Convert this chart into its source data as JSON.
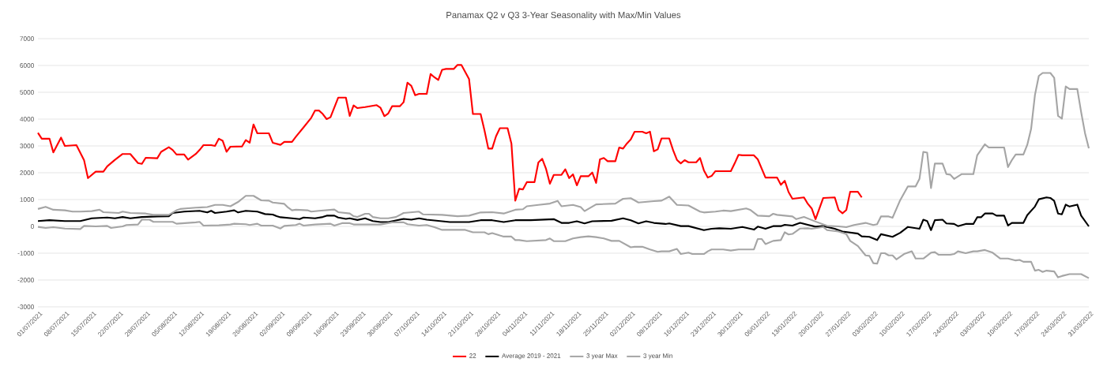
{
  "chart_data": {
    "type": "line",
    "title": "Panamax Q2 v Q3 3-Year Seasonality with Max/Min Values",
    "xlim": [
      "2021-07-01",
      "2022-03-31"
    ],
    "xticks": [
      {
        "value": "2021-07-01",
        "label": "01/07/2021"
      },
      {
        "value": "2021-07-08",
        "label": "08/07/2021"
      },
      {
        "value": "2021-07-15",
        "label": "15/07/2021"
      },
      {
        "value": "2021-07-22",
        "label": "22/07/2021"
      },
      {
        "value": "2021-07-29",
        "label": "29/07/2021"
      },
      {
        "value": "2021-08-05",
        "label": "05/08/2021"
      },
      {
        "value": "2021-08-12",
        "label": "12/08/2021"
      },
      {
        "value": "2021-08-19",
        "label": "19/08/2021"
      },
      {
        "value": "2021-08-26",
        "label": "26/08/2021"
      },
      {
        "value": "2021-09-02",
        "label": "02/09/2021"
      },
      {
        "value": "2021-09-09",
        "label": "09/09/2021"
      },
      {
        "value": "2021-09-16",
        "label": "16/09/2021"
      },
      {
        "value": "2021-09-23",
        "label": "23/09/2021"
      },
      {
        "value": "2021-09-30",
        "label": "30/09/2021"
      },
      {
        "value": "2021-10-07",
        "label": "07/10/2021"
      },
      {
        "value": "2021-10-14",
        "label": "14/10/2021"
      },
      {
        "value": "2021-10-21",
        "label": "21/10/2021"
      },
      {
        "value": "2021-10-28",
        "label": "28/10/2021"
      },
      {
        "value": "2021-11-04",
        "label": "04/11/2021"
      },
      {
        "value": "2021-11-11",
        "label": "11/11/2021"
      },
      {
        "value": "2021-11-18",
        "label": "18/11/2021"
      },
      {
        "value": "2021-11-25",
        "label": "25/11/2021"
      },
      {
        "value": "2021-12-02",
        "label": "02/12/2021"
      },
      {
        "value": "2021-12-09",
        "label": "09/12/2021"
      },
      {
        "value": "2021-12-16",
        "label": "16/12/2021"
      },
      {
        "value": "2021-12-23",
        "label": "23/12/2021"
      },
      {
        "value": "2021-12-30",
        "label": "30/12/2021"
      },
      {
        "value": "2022-01-06",
        "label": "06/01/2022"
      },
      {
        "value": "2022-01-13",
        "label": "13/01/2022"
      },
      {
        "value": "2022-01-20",
        "label": "20/01/2022"
      },
      {
        "value": "2022-01-27",
        "label": "27/01/2022"
      },
      {
        "value": "2022-02-03",
        "label": "03/02/2022"
      },
      {
        "value": "2022-02-10",
        "label": "10/02/2022"
      },
      {
        "value": "2022-02-17",
        "label": "17/02/2022"
      },
      {
        "value": "2022-02-24",
        "label": "24/02/2022"
      },
      {
        "value": "2022-03-03",
        "label": "03/03/2022"
      },
      {
        "value": "2022-03-10",
        "label": "10/03/2022"
      },
      {
        "value": "2022-03-17",
        "label": "17/03/2022"
      },
      {
        "value": "2022-03-24",
        "label": "24/03/2022"
      },
      {
        "value": "2022-03-31",
        "label": "31/03/2022"
      }
    ],
    "ylim": [
      -3000,
      7000
    ],
    "yticks": [
      -3000,
      -2000,
      -1000,
      0,
      1000,
      2000,
      3000,
      4000,
      5000,
      6000,
      7000
    ],
    "grid": "y",
    "legend": "bottom",
    "marker": "none",
    "line_style": "solid",
    "series": [
      {
        "name": "22",
        "color": "#ff0000",
        "x": [
          "2021-07-01",
          "2021-07-02",
          "2021-07-04",
          "2021-07-05",
          "2021-07-07",
          "2021-07-08",
          "2021-07-11",
          "2021-07-13",
          "2021-07-14",
          "2021-07-16",
          "2021-07-18",
          "2021-07-19",
          "2021-07-21",
          "2021-07-23",
          "2021-07-25",
          "2021-07-27",
          "2021-07-28",
          "2021-07-29",
          "2021-08-01",
          "2021-08-02",
          "2021-08-04",
          "2021-08-05",
          "2021-08-06",
          "2021-08-08",
          "2021-08-09",
          "2021-08-11",
          "2021-08-12",
          "2021-08-13",
          "2021-08-15",
          "2021-08-16",
          "2021-08-17",
          "2021-08-18",
          "2021-08-19",
          "2021-08-20",
          "2021-08-23",
          "2021-08-24",
          "2021-08-25",
          "2021-08-26",
          "2021-08-27",
          "2021-08-30",
          "2021-08-31",
          "2021-09-02",
          "2021-09-03",
          "2021-09-05",
          "2021-09-06",
          "2021-09-08",
          "2021-09-10",
          "2021-09-11",
          "2021-09-12",
          "2021-09-13",
          "2021-09-14",
          "2021-09-15",
          "2021-09-17",
          "2021-09-19",
          "2021-09-20",
          "2021-09-21",
          "2021-09-22",
          "2021-09-24",
          "2021-09-27",
          "2021-09-28",
          "2021-09-29",
          "2021-09-30",
          "2021-10-01",
          "2021-10-03",
          "2021-10-04",
          "2021-10-05",
          "2021-10-06",
          "2021-10-07",
          "2021-10-08",
          "2021-10-10",
          "2021-10-11",
          "2021-10-12",
          "2021-10-13",
          "2021-10-14",
          "2021-10-15",
          "2021-10-17",
          "2021-10-18",
          "2021-10-19",
          "2021-10-21",
          "2021-10-22",
          "2021-10-24",
          "2021-10-25",
          "2021-10-26",
          "2021-10-27",
          "2021-10-28",
          "2021-10-29",
          "2021-10-31",
          "2021-11-01",
          "2021-11-02",
          "2021-11-03",
          "2021-11-04",
          "2021-11-05",
          "2021-11-07",
          "2021-11-08",
          "2021-11-09",
          "2021-11-10",
          "2021-11-11",
          "2021-11-12",
          "2021-11-14",
          "2021-11-15",
          "2021-11-16",
          "2021-11-17",
          "2021-11-18",
          "2021-11-19",
          "2021-11-21",
          "2021-11-22",
          "2021-11-23",
          "2021-11-24",
          "2021-11-25",
          "2021-11-26",
          "2021-11-28",
          "2021-11-29",
          "2021-11-30",
          "2021-12-01",
          "2021-12-02",
          "2021-12-03",
          "2021-12-05",
          "2021-12-06",
          "2021-12-07",
          "2021-12-08",
          "2021-12-09",
          "2021-12-10",
          "2021-12-12",
          "2021-12-13",
          "2021-12-14",
          "2021-12-15",
          "2021-12-16",
          "2021-12-17",
          "2021-12-19",
          "2021-12-20",
          "2021-12-21",
          "2021-12-22",
          "2021-12-23",
          "2021-12-24",
          "2021-12-28",
          "2021-12-29",
          "2021-12-30",
          "2021-12-31",
          "2022-01-03",
          "2022-01-04",
          "2022-01-06",
          "2022-01-09",
          "2022-01-10",
          "2022-01-11",
          "2022-01-12",
          "2022-01-13",
          "2022-01-16",
          "2022-01-17",
          "2022-01-18",
          "2022-01-19",
          "2022-01-21",
          "2022-01-24",
          "2022-01-25",
          "2022-01-26",
          "2022-01-27",
          "2022-01-28",
          "2022-01-30",
          "2022-01-31"
        ],
        "values": [
          3490,
          3270,
          3270,
          2760,
          3310,
          3000,
          3030,
          2460,
          1800,
          2040,
          2040,
          2240,
          2480,
          2700,
          2700,
          2360,
          2330,
          2560,
          2540,
          2780,
          2950,
          2850,
          2680,
          2680,
          2490,
          2700,
          2850,
          3030,
          3030,
          3000,
          3270,
          3190,
          2780,
          2970,
          2980,
          3220,
          3120,
          3800,
          3470,
          3470,
          3120,
          3040,
          3150,
          3150,
          3340,
          3690,
          4050,
          4320,
          4320,
          4190,
          4000,
          4070,
          4800,
          4800,
          4120,
          4510,
          4410,
          4450,
          4520,
          4420,
          4110,
          4210,
          4480,
          4480,
          4630,
          5360,
          5240,
          4890,
          4940,
          4940,
          5680,
          5560,
          5460,
          5840,
          5870,
          5870,
          6020,
          6020,
          5490,
          4190,
          4190,
          3580,
          2900,
          2900,
          3360,
          3660,
          3660,
          3090,
          960,
          1400,
          1380,
          1650,
          1650,
          2380,
          2520,
          2140,
          1590,
          1920,
          1920,
          2130,
          1800,
          1940,
          1530,
          1870,
          1870,
          2010,
          1620,
          2500,
          2550,
          2430,
          2430,
          2940,
          2900,
          3090,
          3240,
          3530,
          3530,
          3470,
          3530,
          2800,
          2870,
          3280,
          3280,
          2840,
          2480,
          2350,
          2470,
          2390,
          2390,
          2550,
          2090,
          1820,
          1880,
          2060,
          2060,
          2350,
          2670,
          2650,
          2650,
          2500,
          1820,
          1820,
          1550,
          1700,
          1280,
          1030,
          1080,
          840,
          670,
          270,
          1060,
          1080,
          610,
          490,
          610,
          1290,
          1290,
          1080
        ]
      },
      {
        "name": "Average 2019 - 2021",
        "color": "#000000",
        "x": [
          "2021-07-01",
          "2021-07-04",
          "2021-07-08",
          "2021-07-12",
          "2021-07-15",
          "2021-07-19",
          "2021-07-21",
          "2021-07-23",
          "2021-07-25",
          "2021-07-28",
          "2021-08-01",
          "2021-08-04",
          "2021-08-05",
          "2021-08-08",
          "2021-08-12",
          "2021-08-14",
          "2021-08-15",
          "2021-08-16",
          "2021-08-19",
          "2021-08-21",
          "2021-08-22",
          "2021-08-24",
          "2021-08-27",
          "2021-08-29",
          "2021-08-31",
          "2021-09-01",
          "2021-09-02",
          "2021-09-05",
          "2021-09-07",
          "2021-09-08",
          "2021-09-11",
          "2021-09-13",
          "2021-09-14",
          "2021-09-16",
          "2021-09-17",
          "2021-09-19",
          "2021-09-20",
          "2021-09-22",
          "2021-09-24",
          "2021-09-26",
          "2021-09-28",
          "2021-09-30",
          "2021-10-04",
          "2021-10-06",
          "2021-10-08",
          "2021-10-10",
          "2021-10-16",
          "2021-10-21",
          "2021-10-24",
          "2021-10-27",
          "2021-10-30",
          "2021-11-02",
          "2021-11-06",
          "2021-11-12",
          "2021-11-14",
          "2021-11-16",
          "2021-11-18",
          "2021-11-20",
          "2021-11-22",
          "2021-11-27",
          "2021-11-30",
          "2021-12-02",
          "2021-12-04",
          "2021-12-06",
          "2021-12-08",
          "2021-12-11",
          "2021-12-12",
          "2021-12-15",
          "2021-12-17",
          "2021-12-21",
          "2021-12-23",
          "2021-12-25",
          "2021-12-28",
          "2021-12-31",
          "2022-01-03",
          "2022-01-04",
          "2022-01-06",
          "2022-01-08",
          "2022-01-10",
          "2022-01-11",
          "2022-01-13",
          "2022-01-15",
          "2022-01-17",
          "2022-01-19",
          "2022-01-21",
          "2022-01-24",
          "2022-01-26",
          "2022-01-30",
          "2022-01-31",
          "2022-02-02",
          "2022-02-04",
          "2022-02-05",
          "2022-02-08",
          "2022-02-10",
          "2022-02-12",
          "2022-02-15",
          "2022-02-16",
          "2022-02-17",
          "2022-02-18",
          "2022-02-19",
          "2022-02-21",
          "2022-02-22",
          "2022-02-24",
          "2022-02-25",
          "2022-02-27",
          "2022-03-01",
          "2022-03-02",
          "2022-03-03",
          "2022-03-04",
          "2022-03-06",
          "2022-03-07",
          "2022-03-09",
          "2022-03-10",
          "2022-03-11",
          "2022-03-14",
          "2022-03-15",
          "2022-03-17",
          "2022-03-18",
          "2022-03-20",
          "2022-03-21",
          "2022-03-22",
          "2022-03-23",
          "2022-03-24",
          "2022-03-25",
          "2022-03-26",
          "2022-03-28",
          "2022-03-29",
          "2022-03-31"
        ],
        "values": [
          200,
          230,
          200,
          200,
          300,
          330,
          300,
          350,
          300,
          350,
          370,
          380,
          500,
          550,
          580,
          520,
          580,
          500,
          550,
          600,
          520,
          580,
          550,
          460,
          440,
          380,
          340,
          300,
          270,
          330,
          300,
          350,
          400,
          400,
          330,
          280,
          300,
          240,
          300,
          200,
          160,
          160,
          280,
          250,
          300,
          250,
          160,
          160,
          230,
          230,
          160,
          230,
          230,
          270,
          130,
          130,
          190,
          110,
          190,
          210,
          300,
          230,
          110,
          190,
          130,
          90,
          110,
          10,
          10,
          -140,
          -90,
          -70,
          -90,
          -20,
          -120,
          -10,
          -90,
          10,
          10,
          60,
          30,
          130,
          60,
          -10,
          10,
          -90,
          -190,
          -270,
          -370,
          -390,
          -510,
          -290,
          -390,
          -240,
          -20,
          -90,
          250,
          200,
          -140,
          230,
          250,
          110,
          90,
          10,
          90,
          90,
          340,
          340,
          480,
          480,
          400,
          400,
          30,
          130,
          130,
          420,
          740,
          1010,
          1080,
          1060,
          950,
          480,
          450,
          810,
          740,
          810,
          400,
          0
        ]
      },
      {
        "name": "3 year Max",
        "color": "#a5a5a5",
        "x": [
          "2021-07-01",
          "2021-07-03",
          "2021-07-05",
          "2021-07-08",
          "2021-07-10",
          "2021-07-12",
          "2021-07-15",
          "2021-07-17",
          "2021-07-18",
          "2021-07-22",
          "2021-07-23",
          "2021-07-25",
          "2021-07-29",
          "2021-07-31",
          "2021-08-04",
          "2021-08-06",
          "2021-08-07",
          "2021-08-11",
          "2021-08-14",
          "2021-08-16",
          "2021-08-18",
          "2021-08-20",
          "2021-08-22",
          "2021-08-24",
          "2021-08-26",
          "2021-08-28",
          "2021-08-30",
          "2021-08-31",
          "2021-09-03",
          "2021-09-04",
          "2021-09-05",
          "2021-09-06",
          "2021-09-09",
          "2021-09-10",
          "2021-09-12",
          "2021-09-16",
          "2021-09-17",
          "2021-09-20",
          "2021-09-21",
          "2021-09-22",
          "2021-09-24",
          "2021-09-25",
          "2021-09-26",
          "2021-09-28",
          "2021-09-30",
          "2021-10-02",
          "2021-10-04",
          "2021-10-08",
          "2021-10-09",
          "2021-10-14",
          "2021-10-18",
          "2021-10-21",
          "2021-10-24",
          "2021-10-27",
          "2021-10-30",
          "2021-11-02",
          "2021-11-04",
          "2021-11-05",
          "2021-11-08",
          "2021-11-11",
          "2021-11-13",
          "2021-11-14",
          "2021-11-17",
          "2021-11-19",
          "2021-11-20",
          "2021-11-23",
          "2021-11-28",
          "2021-11-30",
          "2021-12-02",
          "2021-12-04",
          "2021-12-08",
          "2021-12-10",
          "2021-12-12",
          "2021-12-14",
          "2021-12-17",
          "2021-12-20",
          "2021-12-21",
          "2021-12-24",
          "2021-12-26",
          "2021-12-28",
          "2022-01-01",
          "2022-01-02",
          "2022-01-04",
          "2022-01-07",
          "2022-01-08",
          "2022-01-09",
          "2022-01-13",
          "2022-01-14",
          "2022-01-16",
          "2022-01-19",
          "2022-01-22",
          "2022-01-25",
          "2022-01-27",
          "2022-01-29",
          "2022-02-01",
          "2022-02-03",
          "2022-02-04",
          "2022-02-05",
          "2022-02-07",
          "2022-02-08",
          "2022-02-10",
          "2022-02-12",
          "2022-02-14",
          "2022-02-15",
          "2022-02-16",
          "2022-02-17",
          "2022-02-18",
          "2022-02-19",
          "2022-02-21",
          "2022-02-22",
          "2022-02-23",
          "2022-02-24",
          "2022-02-26",
          "2022-03-01",
          "2022-03-02",
          "2022-03-04",
          "2022-03-05",
          "2022-03-09",
          "2022-03-10",
          "2022-03-11",
          "2022-03-12",
          "2022-03-14",
          "2022-03-15",
          "2022-03-16",
          "2022-03-17",
          "2022-03-18",
          "2022-03-19",
          "2022-03-21",
          "2022-03-22",
          "2022-03-23",
          "2022-03-24",
          "2022-03-25",
          "2022-03-26",
          "2022-03-28",
          "2022-03-29",
          "2022-03-30",
          "2022-03-31"
        ],
        "values": [
          650,
          730,
          620,
          600,
          550,
          550,
          570,
          620,
          530,
          500,
          550,
          500,
          480,
          430,
          430,
          600,
          650,
          700,
          720,
          800,
          800,
          750,
          910,
          1140,
          1140,
          970,
          960,
          890,
          840,
          700,
          600,
          620,
          600,
          550,
          580,
          630,
          530,
          480,
          380,
          350,
          470,
          470,
          350,
          300,
          300,
          350,
          500,
          550,
          450,
          430,
          380,
          400,
          520,
          530,
          480,
          620,
          640,
          750,
          800,
          850,
          950,
          750,
          800,
          720,
          570,
          820,
          850,
          1030,
          1050,
          890,
          940,
          960,
          1110,
          800,
          780,
          550,
          520,
          550,
          590,
          570,
          670,
          620,
          400,
          380,
          470,
          430,
          370,
          270,
          350,
          180,
          20,
          0,
          -30,
          50,
          130,
          50,
          80,
          370,
          370,
          320,
          980,
          1490,
          1490,
          1770,
          2780,
          2750,
          1430,
          2340,
          2340,
          1950,
          1930,
          1770,
          1950,
          1950,
          2650,
          3060,
          2940,
          2940,
          2210,
          2470,
          2680,
          2680,
          3040,
          3630,
          4900,
          5610,
          5720,
          5720,
          5540,
          4120,
          4020,
          5220,
          5120,
          5120,
          4260,
          3480,
          2910
        ]
      },
      {
        "name": "3 year Min",
        "color": "#a5a5a5",
        "x": [
          "2021-07-01",
          "2021-07-03",
          "2021-07-05",
          "2021-07-08",
          "2021-07-12",
          "2021-07-13",
          "2021-07-16",
          "2021-07-19",
          "2021-07-20",
          "2021-07-23",
          "2021-07-24",
          "2021-07-27",
          "2021-07-28",
          "2021-07-30",
          "2021-07-31",
          "2021-08-05",
          "2021-08-06",
          "2021-08-08",
          "2021-08-11",
          "2021-08-12",
          "2021-08-13",
          "2021-08-17",
          "2021-08-20",
          "2021-08-21",
          "2021-08-24",
          "2021-08-25",
          "2021-08-27",
          "2021-08-28",
          "2021-08-31",
          "2021-09-02",
          "2021-09-03",
          "2021-09-06",
          "2021-09-07",
          "2021-09-08",
          "2021-09-11",
          "2021-09-15",
          "2021-09-16",
          "2021-09-18",
          "2021-09-20",
          "2021-09-21",
          "2021-09-28",
          "2021-10-01",
          "2021-10-04",
          "2021-10-05",
          "2021-10-08",
          "2021-10-10",
          "2021-10-12",
          "2021-10-14",
          "2021-10-20",
          "2021-10-22",
          "2021-10-25",
          "2021-10-26",
          "2021-10-27",
          "2021-10-29",
          "2021-10-30",
          "2021-11-01",
          "2021-11-02",
          "2021-11-03",
          "2021-11-05",
          "2021-11-10",
          "2021-11-11",
          "2021-11-12",
          "2021-11-15",
          "2021-11-17",
          "2021-11-19",
          "2021-11-21",
          "2021-11-23",
          "2021-11-25",
          "2021-11-27",
          "2021-11-29",
          "2021-12-02",
          "2021-12-03",
          "2021-12-05",
          "2021-12-07",
          "2021-12-09",
          "2021-12-10",
          "2021-12-12",
          "2021-12-14",
          "2021-12-15",
          "2021-12-17",
          "2021-12-18",
          "2021-12-21",
          "2021-12-22",
          "2021-12-23",
          "2021-12-26",
          "2021-12-28",
          "2021-12-30",
          "2022-01-03",
          "2022-01-04",
          "2022-01-05",
          "2022-01-06",
          "2022-01-08",
          "2022-01-10",
          "2022-01-11",
          "2022-01-12",
          "2022-01-13",
          "2022-01-15",
          "2022-01-17",
          "2022-01-18",
          "2022-01-21",
          "2022-01-22",
          "2022-01-25",
          "2022-01-27",
          "2022-01-28",
          "2022-01-30",
          "2022-02-01",
          "2022-02-02",
          "2022-02-03",
          "2022-02-04",
          "2022-02-05",
          "2022-02-06",
          "2022-02-07",
          "2022-02-08",
          "2022-02-09",
          "2022-02-11",
          "2022-02-13",
          "2022-02-14",
          "2022-02-16",
          "2022-02-18",
          "2022-02-19",
          "2022-02-20",
          "2022-02-23",
          "2022-02-24",
          "2022-02-25",
          "2022-02-27",
          "2022-03-01",
          "2022-03-02",
          "2022-03-04",
          "2022-03-06",
          "2022-03-08",
          "2022-03-10",
          "2022-03-12",
          "2022-03-13",
          "2022-03-14",
          "2022-03-16",
          "2022-03-17",
          "2022-03-18",
          "2022-03-19",
          "2022-03-20",
          "2022-03-22",
          "2022-03-23",
          "2022-03-24",
          "2022-03-26",
          "2022-03-29",
          "2022-03-31"
        ],
        "values": [
          -20,
          -60,
          -30,
          -80,
          -100,
          20,
          0,
          20,
          -60,
          0,
          50,
          70,
          250,
          250,
          170,
          170,
          100,
          120,
          150,
          170,
          30,
          40,
          70,
          100,
          80,
          50,
          100,
          30,
          30,
          -80,
          20,
          50,
          100,
          30,
          70,
          100,
          30,
          120,
          120,
          70,
          70,
          150,
          150,
          80,
          30,
          50,
          -30,
          -130,
          -130,
          -220,
          -220,
          -290,
          -250,
          -340,
          -380,
          -380,
          -510,
          -510,
          -550,
          -510,
          -450,
          -550,
          -550,
          -450,
          -400,
          -370,
          -400,
          -450,
          -540,
          -540,
          -780,
          -760,
          -760,
          -860,
          -950,
          -930,
          -930,
          -840,
          -1030,
          -980,
          -1030,
          -1030,
          -930,
          -860,
          -860,
          -900,
          -860,
          -860,
          -470,
          -470,
          -660,
          -540,
          -510,
          -220,
          -300,
          -280,
          -80,
          -70,
          -90,
          -20,
          -140,
          -190,
          -290,
          -540,
          -730,
          -1080,
          -1100,
          -1370,
          -1390,
          -1000,
          -1000,
          -1080,
          -1080,
          -1230,
          -1030,
          -930,
          -1200,
          -1200,
          -980,
          -960,
          -1060,
          -1060,
          -1030,
          -930,
          -1000,
          -930,
          -930,
          -880,
          -980,
          -1200,
          -1200,
          -1270,
          -1250,
          -1320,
          -1320,
          -1650,
          -1620,
          -1700,
          -1650,
          -1680,
          -1900,
          -1850,
          -1780,
          -1780,
          -1930
        ]
      }
    ]
  }
}
